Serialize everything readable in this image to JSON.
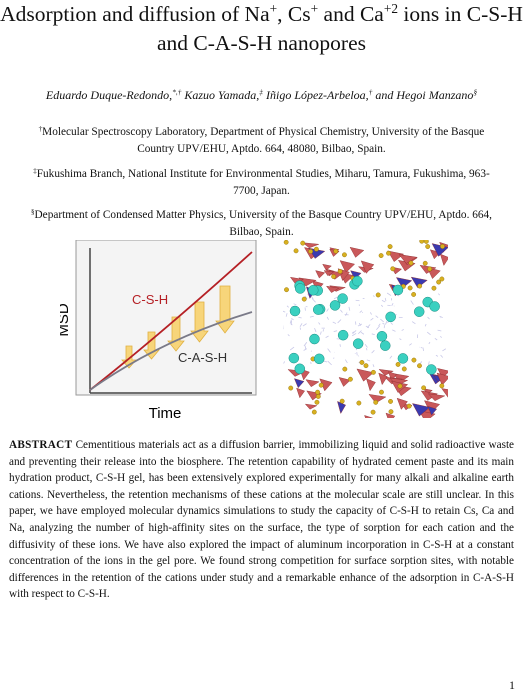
{
  "title": [
    "Adsorption and diffusion of Na",
    "+",
    ", Cs",
    "+",
    " and Ca",
    "+2",
    " ions in C-S-H and C-A-S-H nanopores"
  ],
  "authors": [
    "Eduardo Duque-Redondo,",
    "*,†",
    " Kazuo Yamada,",
    "‡",
    " Iñigo López-Arbeloa,",
    "†",
    " and Hegoi Manzano",
    "§"
  ],
  "affiliations": [
    [
      "†",
      "Molecular Spectroscopy Laboratory, Department of Physical Chemistry, University of the Basque Country UPV/EHU, Aptdo. 664, 48080, Bilbao, Spain."
    ],
    [
      "‡",
      "Fukushima Branch, National Institute for Environmental Studies, Miharu, Tamura, Fukushima, 963-7700, Japan."
    ],
    [
      "§",
      "Department of Condensed Matter Physics, University of the Basque Country UPV/EHU, Aptdo. 664, Bilbao, Spain."
    ]
  ],
  "figure": {
    "y_axis_label": "MSD",
    "x_axis_label": "Time",
    "curve_labels": [
      "C-S-H",
      "C-A-S-H"
    ]
  },
  "abstract": {
    "heading": "ABSTRACT",
    "text": "Cementitious materials act as a diffusion barrier, immobilizing liquid and solid radioactive waste and preventing their release into the biosphere. The retention capability of hydrated cement paste and its main hydration product, C-S-H gel, has been extensively explored experimentally for many alkali and alkaline earth cations. Nevertheless, the retention mechanisms of these cations at the molecular scale are still unclear. In this paper, we have employed molecular dynamics simulations to study the capacity of C-S-H to retain Cs, Ca and Na, analyzing the number of high-affinity sites on the surface, the type of sorption for each cation and the diffusivity of these ions. We have also explored the impact of aluminum incorporation in C-S-H at a constant concentration of the ions in the gel pore. We found strong competition for surface sorption sites, with notable differences in the retention of the cations under study and a remarkable enhance of the adsorption in C-A-S-H with respect to C-S-H."
  },
  "page_number": "1"
}
